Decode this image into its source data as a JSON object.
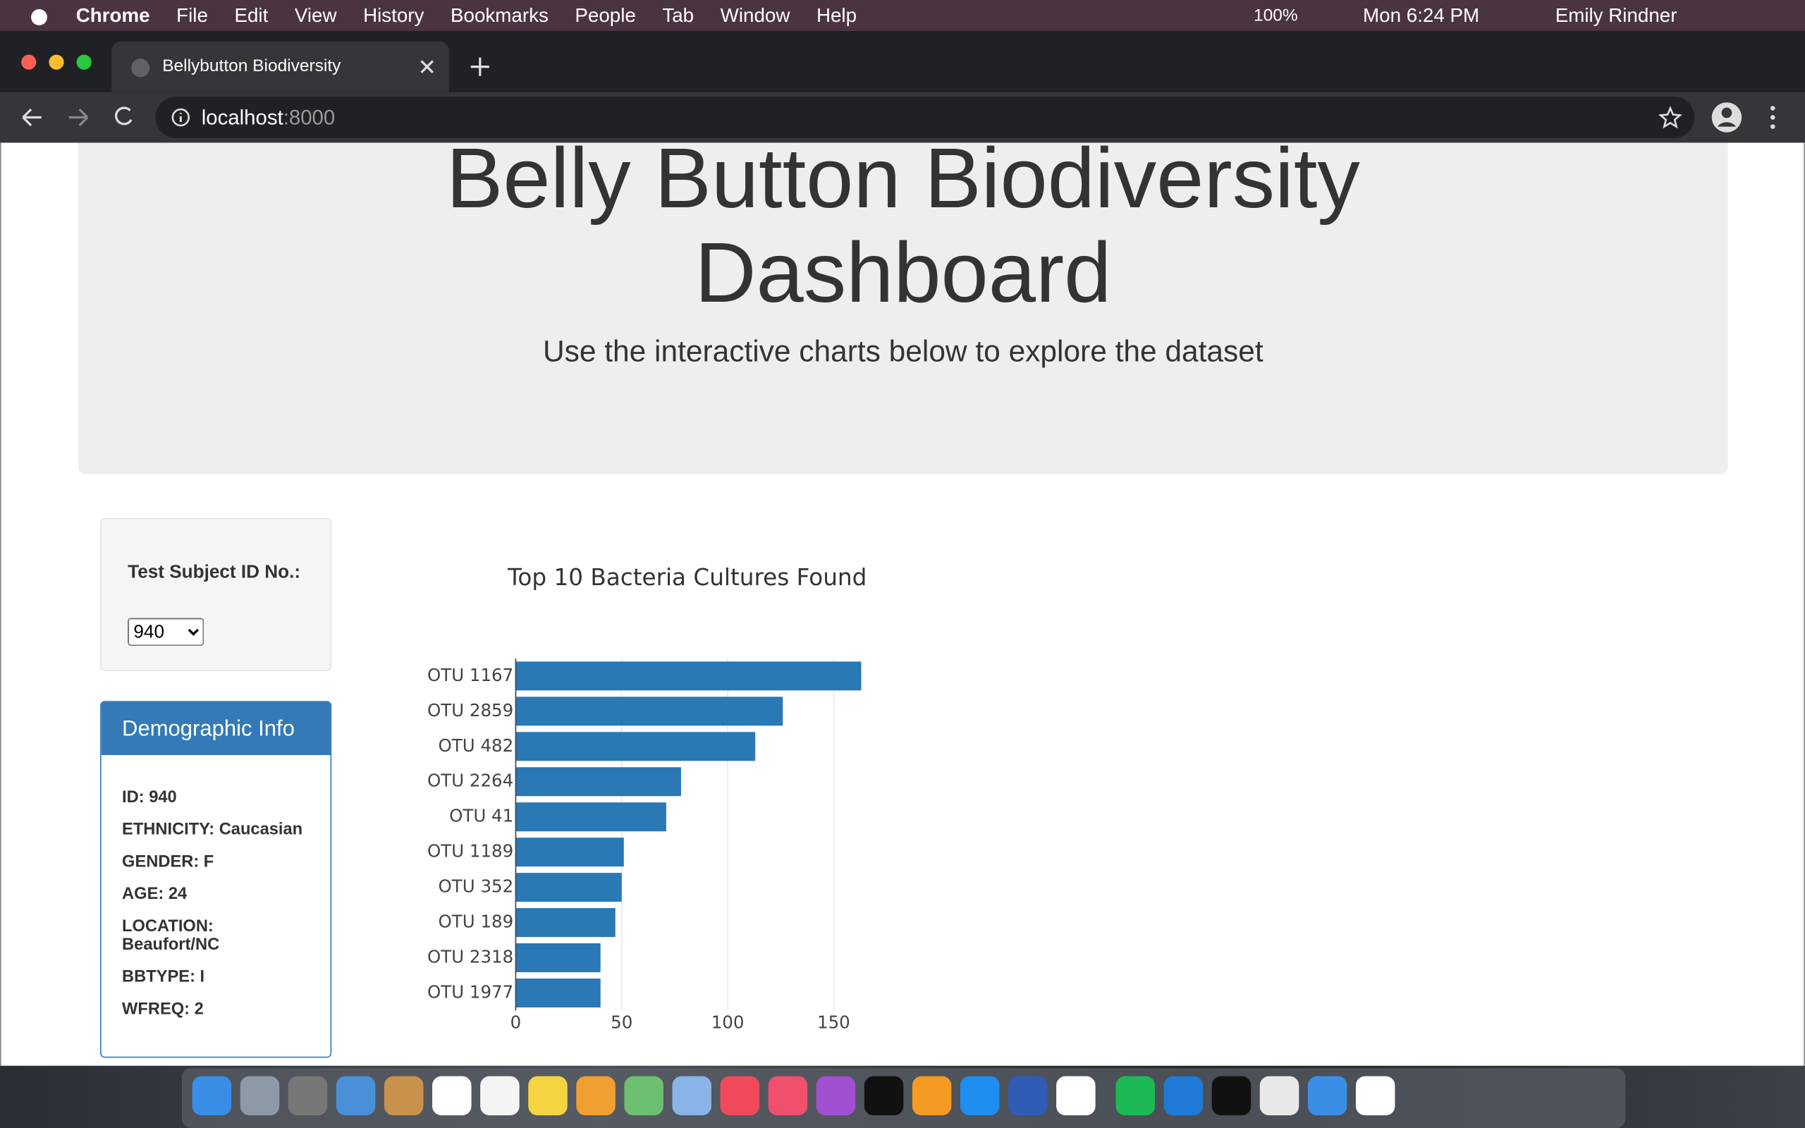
{
  "menu_bar": {
    "app": "Chrome",
    "menus": [
      "File",
      "Edit",
      "View",
      "History",
      "Bookmarks",
      "People",
      "Tab",
      "Window",
      "Help"
    ],
    "battery": "100%",
    "clock": "Mon 6:24 PM",
    "user": "Emily Rindner"
  },
  "browser": {
    "tab_title": "Bellybutton Biodiversity",
    "url_host": "localhost",
    "url_port": ":8000"
  },
  "page": {
    "title": "Belly Button Biodiversity Dashboard",
    "subtitle": "Use the interactive charts below to explore the dataset",
    "selector_label": "Test Subject ID No.:",
    "selected_id": "940",
    "panel_title": "Demographic Info",
    "demographics": [
      "ID: 940",
      "ETHNICITY: Caucasian",
      "GENDER: F",
      "AGE: 24",
      "LOCATION: Beaufort/NC",
      "BBTYPE: I",
      "WFREQ: 2"
    ]
  },
  "chart_data": {
    "type": "bar",
    "orientation": "horizontal",
    "title": "Top 10 Bacteria Cultures Found",
    "categories": [
      "OTU 1167",
      "OTU 2859",
      "OTU 482",
      "OTU 2264",
      "OTU 41",
      "OTU 1189",
      "OTU 352",
      "OTU 189",
      "OTU 2318",
      "OTU 1977"
    ],
    "values": [
      163,
      126,
      113,
      78,
      71,
      51,
      50,
      47,
      40,
      40
    ],
    "color": "#2a78b4",
    "xlim": [
      0,
      171.6
    ],
    "xticks": [
      0,
      50,
      100,
      150
    ],
    "grid": true
  }
}
